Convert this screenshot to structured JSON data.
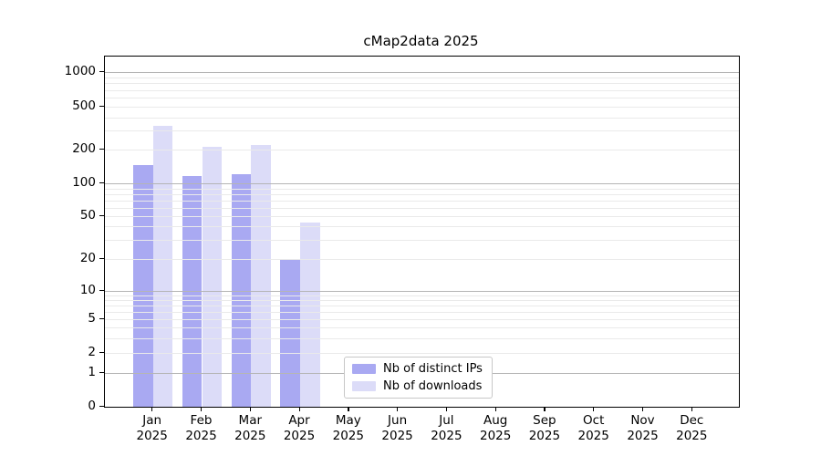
{
  "title": "cMap2data 2025",
  "chart_data": {
    "type": "bar",
    "title": "cMap2data 2025",
    "categories": [
      "Jan 2025",
      "Feb 2025",
      "Mar 2025",
      "Apr 2025",
      "May 2025",
      "Jun 2025",
      "Jul 2025",
      "Aug 2025",
      "Sep 2025",
      "Oct 2025",
      "Nov 2025",
      "Dec 2025"
    ],
    "x_tick_labels": [
      {
        "month": "Jan",
        "year": "2025"
      },
      {
        "month": "Feb",
        "year": "2025"
      },
      {
        "month": "Mar",
        "year": "2025"
      },
      {
        "month": "Apr",
        "year": "2025"
      },
      {
        "month": "May",
        "year": "2025"
      },
      {
        "month": "Jun",
        "year": "2025"
      },
      {
        "month": "Jul",
        "year": "2025"
      },
      {
        "month": "Aug",
        "year": "2025"
      },
      {
        "month": "Sep",
        "year": "2025"
      },
      {
        "month": "Oct",
        "year": "2025"
      },
      {
        "month": "Nov",
        "year": "2025"
      },
      {
        "month": "Dec",
        "year": "2025"
      }
    ],
    "series": [
      {
        "name": "Nb of distinct IPs",
        "color": "#a9a9f2",
        "values": [
          145,
          117,
          120,
          20,
          0,
          0,
          0,
          0,
          0,
          0,
          0,
          0
        ]
      },
      {
        "name": "Nb of downloads",
        "color": "#dcdcf8",
        "values": [
          330,
          215,
          220,
          44,
          0,
          0,
          0,
          0,
          0,
          0,
          0,
          0
        ]
      }
    ],
    "yscale": "symlog",
    "y_ticks": [
      {
        "value": 0,
        "label": "0"
      },
      {
        "value": 1,
        "label": "1"
      },
      {
        "value": 2,
        "label": "2"
      },
      {
        "value": 5,
        "label": "5"
      },
      {
        "value": 10,
        "label": "10"
      },
      {
        "value": 20,
        "label": "20"
      },
      {
        "value": 50,
        "label": "50"
      },
      {
        "value": 100,
        "label": "100"
      },
      {
        "value": 200,
        "label": "200"
      },
      {
        "value": 500,
        "label": "500"
      },
      {
        "value": 1000,
        "label": "1000"
      }
    ],
    "grid": "horizontal, major (1,10,100,1000) + minor (2-9 per decade), drawn above bars",
    "legend_position": "lower center inside plot",
    "xlabel": "",
    "ylabel": ""
  },
  "colors": {
    "background": "#ffffff",
    "bar_distinct_ips": "#a9a9f2",
    "bar_downloads": "#dcdcf8",
    "grid_major": "#b5b5b5",
    "grid_minor": "#eaeaea",
    "axis": "#000000",
    "legend_border": "#c8c8c8"
  }
}
